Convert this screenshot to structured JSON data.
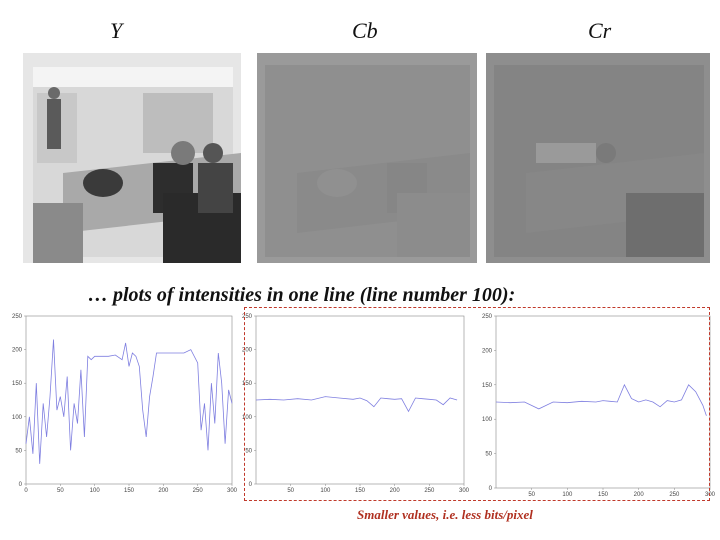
{
  "headings": {
    "y": "Y",
    "cb": "Cb",
    "cr": "Cr"
  },
  "caption": "… plots of intensities in one line (line number 100):",
  "note": "Smaller values, i.e. less bits/pixel",
  "colors": {
    "line": "#7f7fe0",
    "dash": "#c0392b",
    "note": "#b03020"
  },
  "chart_data": [
    {
      "type": "line",
      "channel": "Y",
      "xlim": [
        0,
        300
      ],
      "ylim": [
        0,
        250
      ],
      "x_ticks": [
        "0",
        "50",
        "100",
        "150",
        "200",
        "250",
        "300"
      ],
      "y_ticks": [
        "0",
        "50",
        "100",
        "150",
        "200",
        "250"
      ],
      "x": [
        0,
        5,
        10,
        15,
        20,
        25,
        30,
        35,
        40,
        45,
        50,
        55,
        60,
        65,
        70,
        75,
        80,
        85,
        90,
        95,
        100,
        110,
        120,
        130,
        140,
        145,
        150,
        155,
        160,
        165,
        170,
        175,
        180,
        185,
        190,
        200,
        210,
        220,
        230,
        240,
        250,
        255,
        260,
        265,
        270,
        275,
        280,
        285,
        290,
        295,
        300
      ],
      "values": [
        60,
        100,
        45,
        150,
        30,
        120,
        70,
        130,
        215,
        110,
        130,
        100,
        160,
        50,
        120,
        90,
        170,
        70,
        190,
        185,
        190,
        190,
        190,
        192,
        185,
        210,
        175,
        195,
        190,
        175,
        110,
        70,
        130,
        160,
        195,
        195,
        195,
        195,
        195,
        200,
        180,
        80,
        120,
        50,
        150,
        90,
        195,
        150,
        60,
        140,
        120
      ]
    },
    {
      "type": "line",
      "channel": "Cb",
      "xlim": [
        0,
        300
      ],
      "ylim": [
        0,
        250
      ],
      "x_ticks": [
        "50",
        "100",
        "150",
        "200",
        "250",
        "300"
      ],
      "y_ticks": [
        "0",
        "50",
        "100",
        "150",
        "200",
        "250"
      ],
      "x": [
        0,
        20,
        40,
        60,
        80,
        100,
        120,
        140,
        150,
        160,
        170,
        180,
        190,
        200,
        210,
        220,
        230,
        240,
        250,
        260,
        270,
        280,
        290
      ],
      "values": [
        125,
        126,
        125,
        127,
        125,
        130,
        128,
        126,
        128,
        124,
        115,
        128,
        127,
        126,
        127,
        108,
        128,
        127,
        126,
        125,
        118,
        128,
        125
      ]
    },
    {
      "type": "line",
      "channel": "Cr",
      "xlim": [
        0,
        300
      ],
      "ylim": [
        0,
        250
      ],
      "x_ticks": [
        "50",
        "100",
        "150",
        "200",
        "250",
        "300"
      ],
      "y_ticks": [
        "0",
        "50",
        "100",
        "150",
        "200",
        "250"
      ],
      "x": [
        0,
        20,
        40,
        60,
        80,
        100,
        120,
        140,
        150,
        160,
        170,
        180,
        190,
        200,
        210,
        220,
        230,
        240,
        250,
        260,
        270,
        280,
        290,
        295
      ],
      "values": [
        125,
        124,
        125,
        115,
        125,
        124,
        126,
        125,
        127,
        126,
        125,
        150,
        130,
        125,
        128,
        125,
        118,
        127,
        125,
        128,
        150,
        140,
        120,
        105
      ]
    }
  ]
}
